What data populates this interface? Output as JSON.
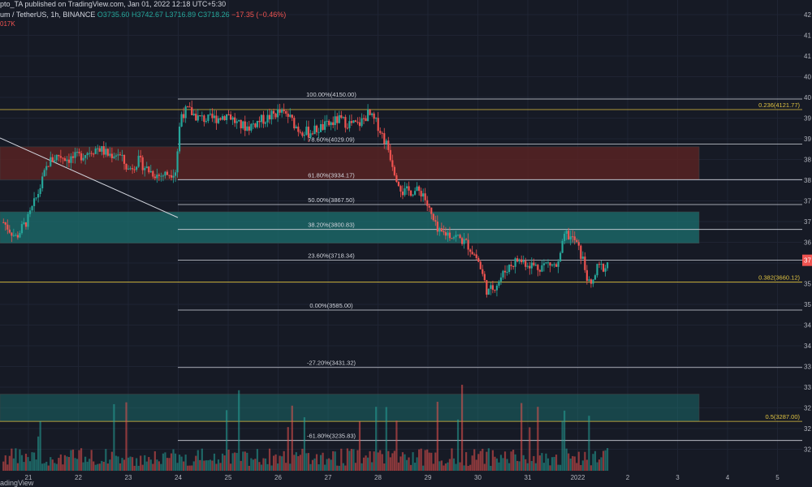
{
  "header": {
    "title": "pto_TA published on TradingView.com, Jan 01, 2022 12:18 UTC+5:30",
    "pair": "um / TetherUS, 1h, BINANCE",
    "open": "O3735.60",
    "high": "H3742.67",
    "low": "L3716.89",
    "close": "C3718.26",
    "change": "−17.35 (−0.46%)",
    "volume": "017K"
  },
  "footer": {
    "brand": "adingView"
  },
  "colors": {
    "bg": "#161a25",
    "up": "#26a69a",
    "down": "#ef5350",
    "fib": "#d1d4dc",
    "yellow": "#e0c341",
    "supply": "#5b2323",
    "demand": "#1c6a6a"
  },
  "chart_data": {
    "type": "candlestick",
    "x_ticks": [
      "21",
      "22",
      "23",
      "24",
      "25",
      "26",
      "27",
      "28",
      "29",
      "30",
      "31",
      "2022",
      "2",
      "3",
      "4",
      "5"
    ],
    "y_ticks": [
      "42",
      "41",
      "41",
      "40",
      "40",
      "39",
      "39",
      "38",
      "38",
      "37",
      "37",
      "36",
      "36",
      "35",
      "35",
      "34",
      "34",
      "33",
      "33",
      "32",
      "32",
      "32"
    ],
    "price_tag": "37",
    "ylim": [
      3170,
      4380
    ],
    "fib_levels": [
      {
        "label": "100.00%(4150.00)",
        "price": 4150.0
      },
      {
        "label": "78.60%(4029.09)",
        "price": 4029.09
      },
      {
        "label": "61.80%(3934.17)",
        "price": 3934.17
      },
      {
        "label": "50.00%(3867.50)",
        "price": 3867.5
      },
      {
        "label": "38.20%(3800.83)",
        "price": 3800.83
      },
      {
        "label": "23.60%(3718.34)",
        "price": 3718.34
      },
      {
        "label": "0.00%(3585.00)",
        "price": 3585.0
      },
      {
        "label": "-27.20%(3431.32)",
        "price": 3431.32
      },
      {
        "label": "-61.80%(3235.83)",
        "price": 3235.83
      }
    ],
    "yellow_levels": [
      {
        "label": "0.236(4121.77)",
        "price": 4121.77
      },
      {
        "label": "0.382(3660.12)",
        "price": 3660.12
      },
      {
        "label": "0.5(3287.00)",
        "price": 3287.0
      }
    ],
    "zones": [
      {
        "name": "supply",
        "from": 3934,
        "to": 4022
      },
      {
        "name": "demand-upper",
        "from": 3764,
        "to": 3848
      },
      {
        "name": "demand-lower",
        "from": 3287,
        "to": 3360
      }
    ],
    "price_path": [
      [
        20.5,
        3820
      ],
      [
        20.75,
        3780
      ],
      [
        21.0,
        3830
      ],
      [
        21.2,
        3900
      ],
      [
        21.4,
        3980
      ],
      [
        21.6,
        4000
      ],
      [
        21.8,
        3990
      ],
      [
        22.0,
        3995
      ],
      [
        22.2,
        4010
      ],
      [
        22.4,
        4020
      ],
      [
        22.6,
        4000
      ],
      [
        22.8,
        4005
      ],
      [
        23.0,
        3960
      ],
      [
        23.2,
        3985
      ],
      [
        23.4,
        3960
      ],
      [
        23.6,
        3945
      ],
      [
        23.8,
        3950
      ],
      [
        23.95,
        3960
      ],
      [
        24.05,
        4110
      ],
      [
        24.2,
        4120
      ],
      [
        24.4,
        4100
      ],
      [
        24.6,
        4095
      ],
      [
        24.8,
        4100
      ],
      [
        25.0,
        4110
      ],
      [
        25.2,
        4080
      ],
      [
        25.4,
        4075
      ],
      [
        25.6,
        4090
      ],
      [
        25.8,
        4100
      ],
      [
        26.0,
        4115
      ],
      [
        26.2,
        4105
      ],
      [
        26.4,
        4070
      ],
      [
        26.6,
        4060
      ],
      [
        26.8,
        4070
      ],
      [
        27.0,
        4080
      ],
      [
        27.2,
        4095
      ],
      [
        27.4,
        4085
      ],
      [
        27.6,
        4080
      ],
      [
        27.8,
        4110
      ],
      [
        28.0,
        4080
      ],
      [
        28.2,
        4020
      ],
      [
        28.35,
        3950
      ],
      [
        28.5,
        3900
      ],
      [
        28.7,
        3905
      ],
      [
        28.9,
        3900
      ],
      [
        29.0,
        3860
      ],
      [
        29.2,
        3790
      ],
      [
        29.4,
        3790
      ],
      [
        29.6,
        3780
      ],
      [
        29.8,
        3760
      ],
      [
        30.0,
        3720
      ],
      [
        30.2,
        3630
      ],
      [
        30.4,
        3660
      ],
      [
        30.6,
        3700
      ],
      [
        30.8,
        3720
      ],
      [
        31.0,
        3710
      ],
      [
        31.2,
        3700
      ],
      [
        31.4,
        3710
      ],
      [
        31.6,
        3700
      ],
      [
        31.75,
        3790
      ],
      [
        31.95,
        3770
      ],
      [
        32.1,
        3720
      ],
      [
        32.25,
        3640
      ],
      [
        32.4,
        3700
      ],
      [
        32.55,
        3700
      ],
      [
        32.6,
        3712
      ]
    ]
  }
}
